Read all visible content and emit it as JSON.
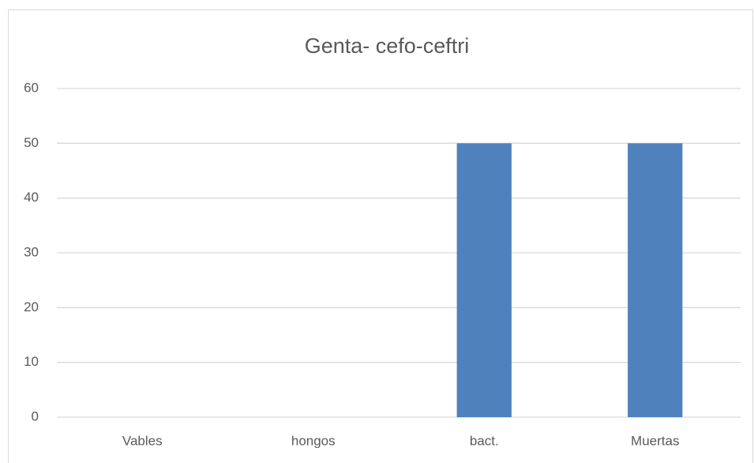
{
  "chart_data": {
    "type": "bar",
    "title": "Genta- cefo-ceftri",
    "categories": [
      "Vables",
      "hongos",
      "bact.",
      "Muertas"
    ],
    "values": [
      0,
      0,
      50,
      50
    ],
    "color": "#4f81bd",
    "ylim": [
      0,
      60
    ],
    "yticks": [
      0,
      10,
      20,
      30,
      40,
      50,
      60
    ],
    "grid": true
  }
}
